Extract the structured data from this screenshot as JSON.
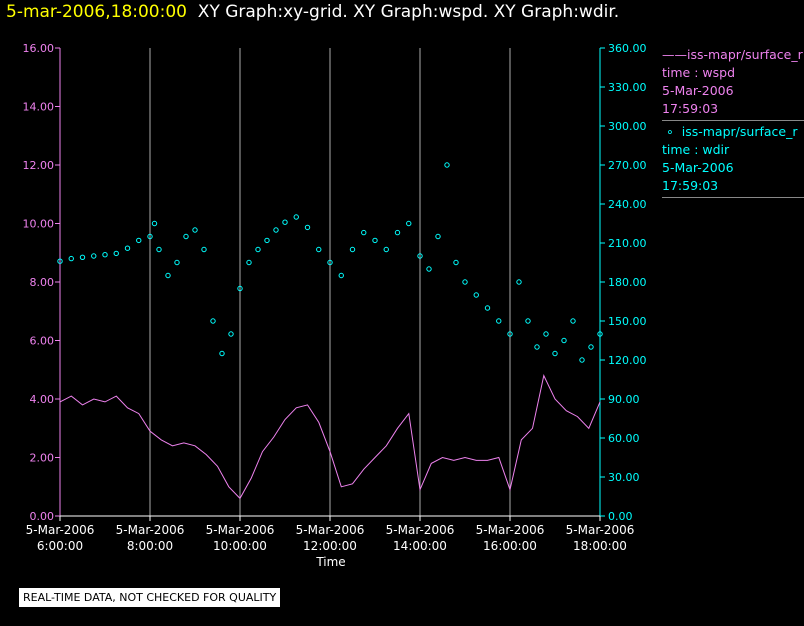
{
  "header": {
    "timestamp": "5-mar-2006,18:00:00",
    "graphs": "XY Graph:xy-grid.  XY Graph:wspd.  XY Graph:wdir."
  },
  "legend": {
    "series1": {
      "source": "iss-mapr/surface_r",
      "label": "time : wspd",
      "date": "5-Mar-2006",
      "time": "17:59:03"
    },
    "series2": {
      "source": "iss-mapr/surface_r",
      "label": "time : wdir",
      "date": "5-Mar-2006",
      "time": "17:59:03"
    }
  },
  "notice": "REAL-TIME DATA, NOT CHECKED FOR QUALITY",
  "colors": {
    "wspd": "#ee82ee",
    "wdir": "#00ffff",
    "grid": "#aaaaaa",
    "axis_text": "#ffffff"
  },
  "chart_data": {
    "type": "line",
    "xlabel": "Time",
    "x_ticks": [
      {
        "date": "5-Mar-2006",
        "time": "6:00:00",
        "h": 6
      },
      {
        "date": "5-Mar-2006",
        "time": "8:00:00",
        "h": 8
      },
      {
        "date": "5-Mar-2006",
        "time": "10:00:00",
        "h": 10
      },
      {
        "date": "5-Mar-2006",
        "time": "12:00:00",
        "h": 12
      },
      {
        "date": "5-Mar-2006",
        "time": "14:00:00",
        "h": 14
      },
      {
        "date": "5-Mar-2006",
        "time": "16:00:00",
        "h": 16
      },
      {
        "date": "5-Mar-2006",
        "time": "18:00:00",
        "h": 18
      }
    ],
    "xlim": [
      6,
      18
    ],
    "left_axis": {
      "ticks": [
        "0.00",
        "2.00",
        "4.00",
        "6.00",
        "8.00",
        "10.00",
        "12.00",
        "14.00",
        "16.00"
      ],
      "ylim": [
        0,
        16
      ]
    },
    "right_axis": {
      "ticks": [
        "0.00",
        "30.00",
        "60.00",
        "90.00",
        "120.00",
        "150.00",
        "180.00",
        "210.00",
        "240.00",
        "270.00",
        "300.00",
        "330.00",
        "360.00"
      ],
      "ylim": [
        0,
        360
      ]
    },
    "series": [
      {
        "name": "time : wspd",
        "type": "line",
        "axis": "left",
        "x": [
          6.0,
          6.25,
          6.5,
          6.75,
          7.0,
          7.25,
          7.5,
          7.75,
          8.0,
          8.25,
          8.5,
          8.75,
          9.0,
          9.25,
          9.5,
          9.75,
          10.0,
          10.25,
          10.5,
          10.75,
          11.0,
          11.25,
          11.5,
          11.75,
          12.0,
          12.25,
          12.5,
          12.75,
          13.0,
          13.25,
          13.5,
          13.75,
          14.0,
          14.25,
          14.5,
          14.75,
          15.0,
          15.25,
          15.5,
          15.75,
          16.0,
          16.25,
          16.5,
          16.75,
          17.0,
          17.25,
          17.5,
          17.75,
          18.0
        ],
        "y": [
          3.9,
          4.1,
          3.8,
          4.0,
          3.9,
          4.1,
          3.7,
          3.5,
          2.9,
          2.6,
          2.4,
          2.5,
          2.4,
          2.1,
          1.7,
          1.0,
          0.6,
          1.3,
          2.2,
          2.7,
          3.3,
          3.7,
          3.8,
          3.2,
          2.2,
          1.0,
          1.1,
          1.6,
          2.0,
          2.4,
          3.0,
          3.5,
          0.9,
          1.8,
          2.0,
          1.9,
          2.0,
          1.9,
          1.9,
          2.0,
          0.9,
          2.6,
          3.0,
          4.8,
          4.0,
          3.6,
          3.4,
          3.0,
          3.9
        ]
      },
      {
        "name": "time : wdir",
        "type": "scatter",
        "axis": "right",
        "x": [
          6.0,
          6.25,
          6.5,
          6.75,
          7.0,
          7.25,
          7.5,
          7.75,
          8.0,
          8.1,
          8.2,
          8.4,
          8.6,
          8.8,
          9.0,
          9.2,
          9.4,
          9.6,
          9.8,
          10.0,
          10.2,
          10.4,
          10.6,
          10.8,
          11.0,
          11.25,
          11.5,
          11.75,
          12.0,
          12.25,
          12.5,
          12.75,
          13.0,
          13.25,
          13.5,
          13.75,
          14.0,
          14.2,
          14.4,
          14.6,
          14.8,
          15.0,
          15.25,
          15.5,
          15.75,
          16.0,
          16.2,
          16.4,
          16.6,
          16.8,
          17.0,
          17.2,
          17.4,
          17.6,
          17.8,
          18.0
        ],
        "y": [
          196,
          198,
          199,
          200,
          201,
          202,
          206,
          212,
          215,
          225,
          205,
          185,
          195,
          215,
          220,
          205,
          150,
          125,
          140,
          175,
          195,
          205,
          212,
          220,
          226,
          230,
          222,
          205,
          195,
          185,
          205,
          218,
          212,
          205,
          218,
          225,
          200,
          190,
          215,
          270,
          195,
          180,
          170,
          160,
          150,
          140,
          180,
          150,
          130,
          140,
          125,
          135,
          150,
          120,
          130,
          140
        ]
      }
    ]
  }
}
